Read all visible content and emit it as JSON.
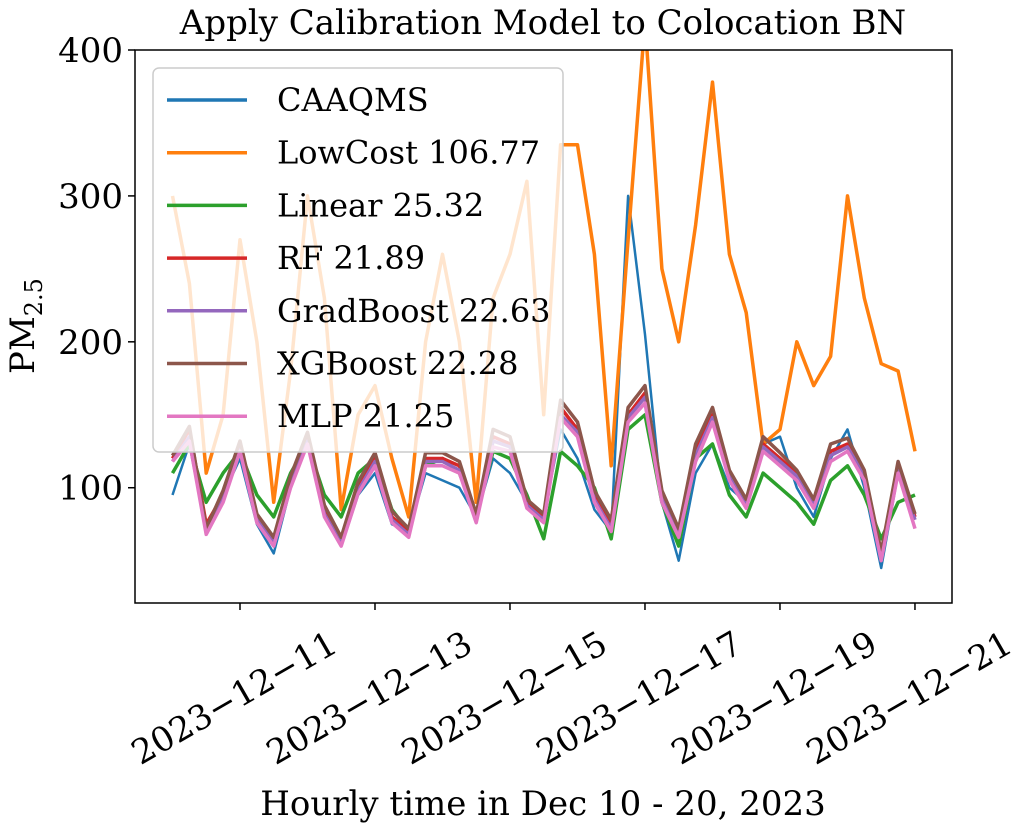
{
  "chart_data": {
    "type": "line",
    "title": "Apply Calibration Model to Colocation BN",
    "xlabel": "Hourly time in Dec 10 - 20, 2023",
    "ylabel": "PM",
    "ylabel_sub": "2.5",
    "x": [
      "2023-12-10T00:00",
      "2023-12-10T06:00",
      "2023-12-10T12:00",
      "2023-12-10T18:00",
      "2023-12-11T00:00",
      "2023-12-11T06:00",
      "2023-12-11T12:00",
      "2023-12-11T18:00",
      "2023-12-12T00:00",
      "2023-12-12T06:00",
      "2023-12-12T12:00",
      "2023-12-12T18:00",
      "2023-12-13T00:00",
      "2023-12-13T06:00",
      "2023-12-13T12:00",
      "2023-12-13T18:00",
      "2023-12-14T00:00",
      "2023-12-14T06:00",
      "2023-12-14T12:00",
      "2023-12-14T18:00",
      "2023-12-15T00:00",
      "2023-12-15T06:00",
      "2023-12-15T12:00",
      "2023-12-15T18:00",
      "2023-12-16T00:00",
      "2023-12-16T06:00",
      "2023-12-16T12:00",
      "2023-12-16T18:00",
      "2023-12-17T00:00",
      "2023-12-17T06:00",
      "2023-12-17T12:00",
      "2023-12-17T18:00",
      "2023-12-18T00:00",
      "2023-12-18T06:00",
      "2023-12-18T12:00",
      "2023-12-18T18:00",
      "2023-12-19T00:00",
      "2023-12-19T06:00",
      "2023-12-19T12:00",
      "2023-12-19T18:00",
      "2023-12-20T00:00",
      "2023-12-20T06:00",
      "2023-12-20T12:00",
      "2023-12-20T18:00",
      "2023-12-21T00:00"
    ],
    "xlim": [
      "2023-12-09T10:40",
      "2023-12-21T13:10"
    ],
    "xticks": [
      {
        "value": "2023-12-11",
        "label": "2023−12−11"
      },
      {
        "value": "2023-12-13",
        "label": "2023−12−13"
      },
      {
        "value": "2023-12-15",
        "label": "2023−12−15"
      },
      {
        "value": "2023-12-17",
        "label": "2023−12−17"
      },
      {
        "value": "2023-12-19",
        "label": "2023−12−19"
      },
      {
        "value": "2023-12-21",
        "label": "2023−12−21"
      }
    ],
    "ylim": [
      21,
      400
    ],
    "yticks": [
      100,
      200,
      300,
      400
    ],
    "legend": "upper left",
    "series": [
      {
        "name": "CAAQMS",
        "color": "#1f77b4",
        "values": [
          95,
          130,
          70,
          95,
          120,
          75,
          55,
          100,
          130,
          80,
          60,
          95,
          110,
          75,
          70,
          110,
          105,
          100,
          80,
          120,
          110,
          90,
          80,
          140,
          120,
          85,
          70,
          300,
          205,
          90,
          50,
          110,
          130,
          100,
          90,
          130,
          135,
          100,
          80,
          120,
          140,
          100,
          45,
          110,
          80
        ]
      },
      {
        "name": "LowCost 106.77",
        "color": "#ff7f0e",
        "values": [
          300,
          240,
          110,
          150,
          270,
          200,
          90,
          180,
          300,
          230,
          85,
          150,
          170,
          120,
          80,
          200,
          260,
          200,
          90,
          230,
          260,
          310,
          150,
          335,
          335,
          260,
          115,
          270,
          420,
          250,
          200,
          280,
          378,
          260,
          220,
          130,
          140,
          200,
          170,
          190,
          300,
          230,
          185,
          180,
          125
        ]
      },
      {
        "name": "Linear 25.32",
        "color": "#2ca02c",
        "values": [
          110,
          130,
          90,
          110,
          125,
          95,
          80,
          110,
          130,
          95,
          80,
          110,
          120,
          85,
          70,
          115,
          120,
          110,
          80,
          125,
          120,
          95,
          65,
          125,
          115,
          100,
          65,
          140,
          150,
          90,
          60,
          120,
          130,
          95,
          80,
          110,
          100,
          90,
          75,
          105,
          115,
          95,
          65,
          90,
          95
        ]
      },
      {
        "name": "RF 21.89",
        "color": "#d62728",
        "values": [
          120,
          140,
          75,
          95,
          130,
          80,
          65,
          105,
          135,
          85,
          65,
          100,
          120,
          80,
          70,
          120,
          120,
          115,
          80,
          135,
          130,
          90,
          80,
          155,
          140,
          95,
          75,
          150,
          165,
          95,
          70,
          125,
          150,
          110,
          90,
          130,
          120,
          110,
          90,
          125,
          130,
          110,
          55,
          115,
          80
        ]
      },
      {
        "name": "GradBoost 22.63",
        "color": "#9467bd",
        "values": [
          118,
          135,
          70,
          92,
          128,
          78,
          62,
          102,
          132,
          82,
          62,
          98,
          118,
          78,
          68,
          118,
          118,
          112,
          78,
          132,
          128,
          88,
          78,
          150,
          138,
          92,
          72,
          148,
          162,
          92,
          68,
          122,
          148,
          108,
          88,
          128,
          118,
          108,
          88,
          122,
          128,
          108,
          52,
          112,
          78
        ]
      },
      {
        "name": "XGBoost 22.28",
        "color": "#8c564b",
        "values": [
          122,
          142,
          72,
          98,
          132,
          82,
          66,
          108,
          138,
          88,
          66,
          104,
          124,
          84,
          72,
          124,
          124,
          118,
          82,
          140,
          135,
          92,
          82,
          160,
          145,
          98,
          78,
          155,
          170,
          98,
          72,
          130,
          155,
          112,
          92,
          135,
          124,
          112,
          92,
          130,
          134,
          112,
          56,
          118,
          82
        ]
      },
      {
        "name": "MLP 21.25",
        "color": "#e377c2",
        "values": [
          118,
          132,
          68,
          90,
          125,
          76,
          60,
          100,
          130,
          80,
          60,
          96,
          115,
          76,
          66,
          115,
          115,
          110,
          76,
          128,
          125,
          86,
          76,
          148,
          135,
          90,
          70,
          145,
          158,
          90,
          66,
          118,
          145,
          105,
          86,
          125,
          115,
          105,
          86,
          118,
          125,
          105,
          50,
          110,
          72
        ]
      }
    ]
  }
}
